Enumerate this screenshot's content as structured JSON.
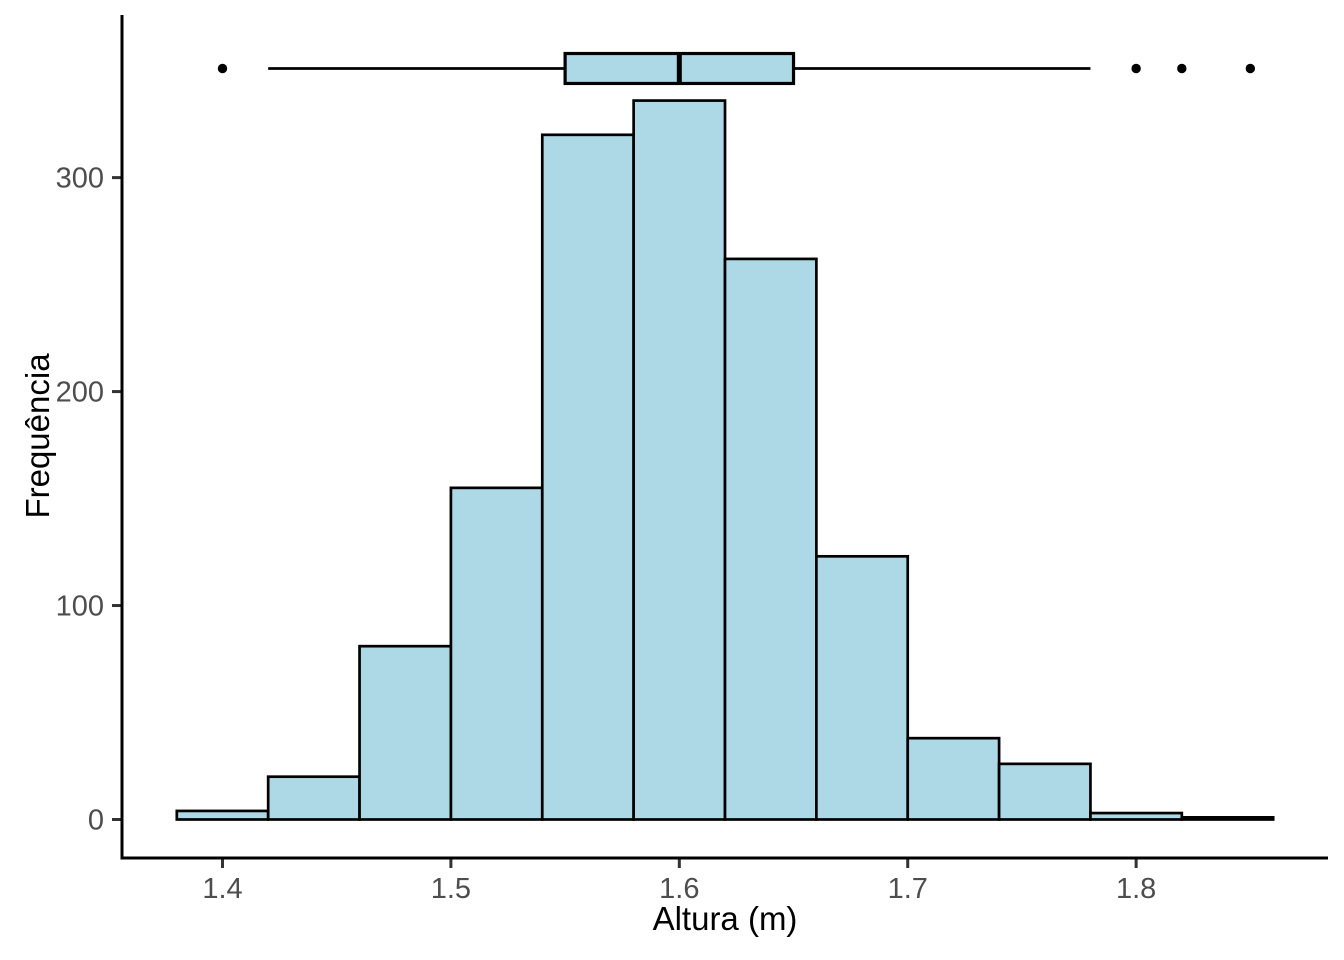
{
  "chart_data": {
    "type": "bar",
    "subtype": "histogram-with-boxplot-overlay",
    "title": "",
    "xlabel": "Altura (m)",
    "ylabel": "Frequência",
    "grid": false,
    "legend": "none",
    "bin_edges": [
      1.38,
      1.42,
      1.46,
      1.5,
      1.54,
      1.58,
      1.62,
      1.66,
      1.7,
      1.74,
      1.78,
      1.82,
      1.86
    ],
    "frequencies": [
      4,
      20,
      81,
      155,
      320,
      336,
      262,
      123,
      38,
      26,
      3,
      1
    ],
    "x_ticks": [
      1.4,
      1.5,
      1.6,
      1.7,
      1.8
    ],
    "x_tick_labels": [
      "1.4",
      "1.5",
      "1.6",
      "1.7",
      "1.8"
    ],
    "y_ticks": [
      0,
      100,
      200,
      300
    ],
    "y_tick_labels": [
      "0",
      "100",
      "200",
      "300"
    ],
    "xlim": [
      1.356,
      1.884
    ],
    "ylim": [
      -18,
      376
    ],
    "boxplot": {
      "whisker_low": 1.42,
      "q1": 1.55,
      "median": 1.6,
      "q3": 1.65,
      "whisker_high": 1.78,
      "outliers": [
        1.4,
        1.8,
        1.82,
        1.85
      ],
      "y_center": 351,
      "box_half_height": 7
    },
    "colors": {
      "bar_fill": "#ADD8E6",
      "bar_stroke": "#000000",
      "axis_line": "#000000",
      "tick_mark": "#333333",
      "tick_label": "#4D4D4D",
      "axis_title": "#000000",
      "outlier_dot": "#000000",
      "background": "#FFFFFF"
    }
  }
}
